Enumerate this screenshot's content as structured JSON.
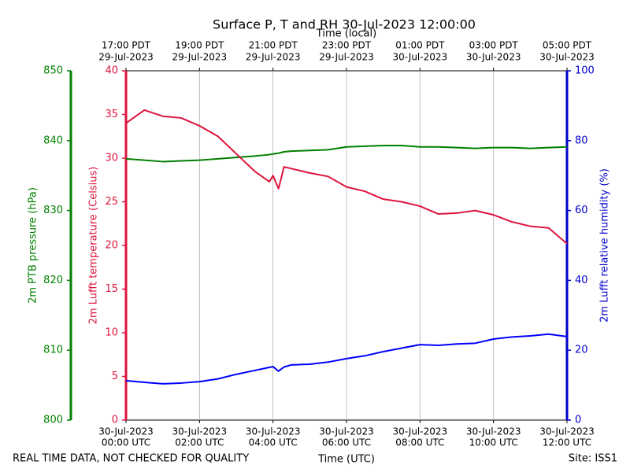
{
  "chart_data": {
    "type": "line",
    "title": "Surface P, T and RH 30-Jul-2023 12:00:00",
    "xlabel": "Time (UTC)",
    "xlabel_top": "Time (local)",
    "ylabel": "2m Lufft temperature (Celsius)",
    "y2label": "2m Lufft relative humidity (%)",
    "y3label": "2m PTB pressure (hPa)",
    "footer_left": "REAL TIME DATA, NOT CHECKED FOR QUALITY",
    "footer_right": "Site: ISS1",
    "grid": true,
    "xlim": [
      0,
      12
    ],
    "xticks": [
      {
        "value": 0,
        "label": [
          "30-Jul-2023",
          "00:00 UTC"
        ]
      },
      {
        "value": 2,
        "label": [
          "30-Jul-2023",
          "02:00 UTC"
        ]
      },
      {
        "value": 4,
        "label": [
          "30-Jul-2023",
          "04:00 UTC"
        ]
      },
      {
        "value": 6,
        "label": [
          "30-Jul-2023",
          "06:00 UTC"
        ]
      },
      {
        "value": 8,
        "label": [
          "30-Jul-2023",
          "08:00 UTC"
        ]
      },
      {
        "value": 10,
        "label": [
          "30-Jul-2023",
          "10:00 UTC"
        ]
      },
      {
        "value": 12,
        "label": [
          "30-Jul-2023",
          "12:00 UTC"
        ]
      }
    ],
    "xticks_top": [
      {
        "value": 0,
        "label": [
          "17:00 PDT",
          "29-Jul-2023"
        ]
      },
      {
        "value": 2,
        "label": [
          "19:00 PDT",
          "29-Jul-2023"
        ]
      },
      {
        "value": 4,
        "label": [
          "21:00 PDT",
          "29-Jul-2023"
        ]
      },
      {
        "value": 6,
        "label": [
          "23:00 PDT",
          "29-Jul-2023"
        ]
      },
      {
        "value": 8,
        "label": [
          "01:00 PDT",
          "30-Jul-2023"
        ]
      },
      {
        "value": 10,
        "label": [
          "03:00 PDT",
          "30-Jul-2023"
        ]
      },
      {
        "value": 12,
        "label": [
          "05:00 PDT",
          "30-Jul-2023"
        ]
      }
    ],
    "ylim": [
      0,
      40
    ],
    "yticks": [
      0,
      5,
      10,
      15,
      20,
      25,
      30,
      35,
      40
    ],
    "y2lim": [
      0,
      100
    ],
    "y2ticks": [
      0,
      20,
      40,
      60,
      80,
      100
    ],
    "y3lim": [
      800,
      850
    ],
    "y3ticks": [
      800,
      810,
      820,
      830,
      840,
      850
    ],
    "axis_colors": {
      "y": "#dc143c",
      "y2": "#0000cd",
      "y3": "#008000"
    },
    "x": [
      0,
      0.5,
      1,
      1.5,
      2,
      2.5,
      3,
      3.5,
      3.9,
      4,
      4.15,
      4.3,
      4.5,
      5,
      5.5,
      6,
      6.5,
      7,
      7.5,
      8,
      8.5,
      9,
      9.5,
      10,
      10.5,
      11,
      11.5,
      12
    ],
    "series": [
      {
        "name": "2m PTB pressure",
        "color": "#008000",
        "axis": "y3",
        "values": [
          837.4,
          837.2,
          837.0,
          837.1,
          837.2,
          837.4,
          837.6,
          837.8,
          838.0,
          838.1,
          838.2,
          838.4,
          838.5,
          838.6,
          838.7,
          839.1,
          839.2,
          839.3,
          839.3,
          839.1,
          839.1,
          839.0,
          838.9,
          839.0,
          839.0,
          838.9,
          839.0,
          839.1
        ]
      },
      {
        "name": "2m Lufft relative humidity",
        "color": "#0000ff",
        "axis": "y2",
        "values": [
          11.3,
          10.8,
          10.4,
          10.6,
          11.0,
          11.8,
          13.1,
          14.2,
          15.1,
          15.3,
          14.0,
          15.2,
          15.8,
          16.0,
          16.6,
          17.6,
          18.4,
          19.6,
          20.6,
          21.6,
          21.4,
          21.8,
          22.0,
          23.2,
          23.8,
          24.1,
          24.6,
          23.9
        ]
      },
      {
        "name": "2m Lufft temperature",
        "color": "#dc143c",
        "axis": "y",
        "values": [
          34.0,
          35.5,
          34.8,
          34.6,
          33.7,
          32.5,
          30.5,
          28.5,
          27.3,
          28.0,
          26.5,
          29.0,
          28.8,
          28.3,
          27.9,
          26.7,
          26.2,
          25.3,
          25.0,
          24.5,
          23.6,
          23.7,
          24.0,
          23.5,
          22.7,
          22.2,
          22.0,
          20.2
        ]
      }
    ]
  }
}
